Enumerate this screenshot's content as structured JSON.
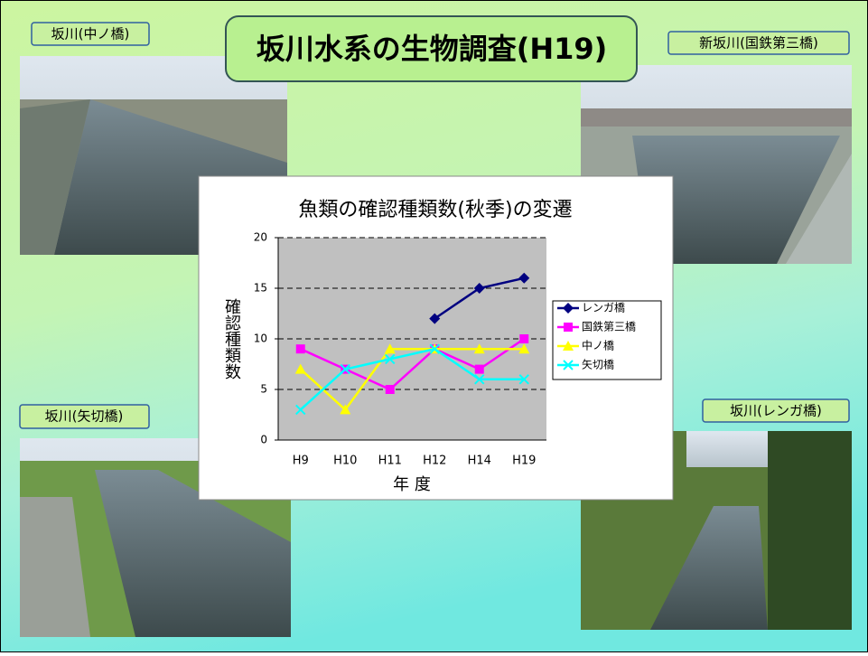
{
  "slide": {
    "title": "坂川水系の生物調査(H19)",
    "captions": [
      "坂川(中ノ橋)",
      "新坂川(国鉄第三橋)",
      "坂川(矢切橋)",
      "坂川(レンガ橋)"
    ]
  },
  "chart_data": {
    "type": "line",
    "title": "魚類の確認種類数(秋季)の変遷",
    "x_label": "年 度",
    "y_label": "確認種類数",
    "categories": [
      "H9",
      "H10",
      "H11",
      "H12",
      "H14",
      "H19"
    ],
    "series": [
      {
        "name": "レンガ橋",
        "color": "#000080",
        "marker": "diamond",
        "values": [
          null,
          null,
          null,
          12,
          15,
          16
        ]
      },
      {
        "name": "国鉄第三橋",
        "color": "#ff00ff",
        "marker": "square",
        "values": [
          9,
          7,
          5,
          9,
          7,
          10
        ]
      },
      {
        "name": "中ノ橋",
        "color": "#ffff00",
        "marker": "triangle",
        "values": [
          7,
          3,
          9,
          9,
          9,
          9
        ]
      },
      {
        "name": "矢切橋",
        "color": "#00ffff",
        "marker": "x",
        "values": [
          3,
          7,
          8,
          9,
          6,
          6
        ]
      }
    ],
    "ylim": [
      0,
      20
    ],
    "yticks": [
      0,
      5,
      10,
      15,
      20
    ],
    "grid": true,
    "legend": "right"
  }
}
